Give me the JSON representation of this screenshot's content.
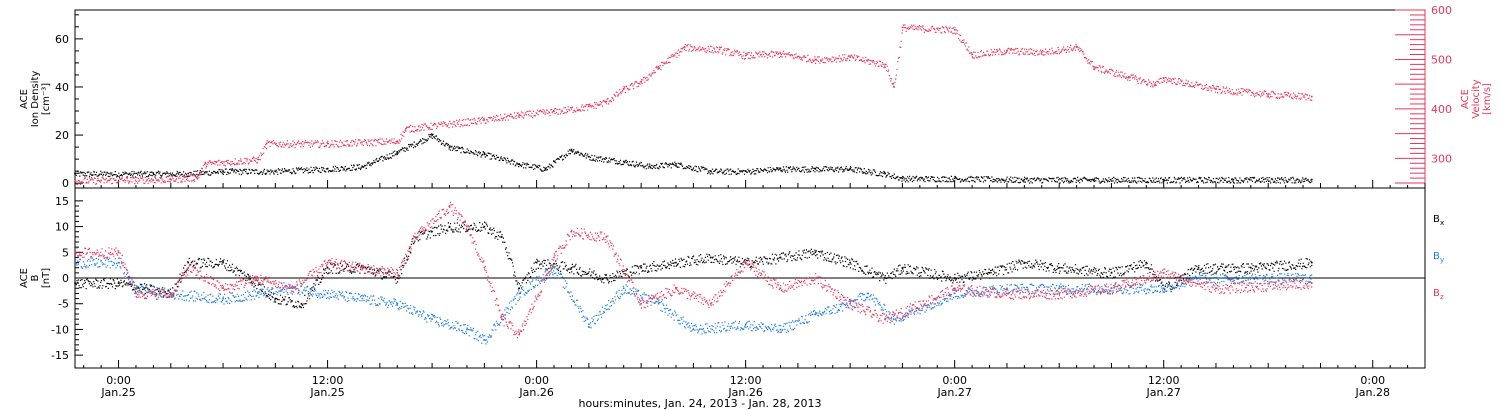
{
  "colors": {
    "black": "#000000",
    "blue": "#1f7fe0",
    "red": "#e8365c"
  },
  "xaxis": {
    "ticks": [
      {
        "t": "01-25 00:00",
        "time": "0:00",
        "day": "Jan.25"
      },
      {
        "t": "01-25 12:00",
        "time": "12:00",
        "day": "Jan.25"
      },
      {
        "t": "01-26 00:00",
        "time": "0:00",
        "day": "Jan.26"
      },
      {
        "t": "01-26 12:00",
        "time": "12:00",
        "day": "Jan.26"
      },
      {
        "t": "01-27 00:00",
        "time": "0:00",
        "day": "Jan.27"
      },
      {
        "t": "01-27 12:00",
        "time": "12:00",
        "day": "Jan.27"
      },
      {
        "t": "01-28 00:00",
        "time": "0:00",
        "day": "Jan.28"
      }
    ],
    "label": "hours:minutes, Jan. 24, 2013 - Jan. 28, 2013",
    "range": [
      "01-24 21:30",
      "01-28 03:00"
    ]
  },
  "chart_data": [
    {
      "type": "scatter",
      "panel": "top",
      "left_axis": {
        "label_lines": [
          "ACE",
          "Ion Density",
          "[cm⁻³]"
        ],
        "ylim": [
          -2,
          72
        ],
        "ticks": [
          0,
          20,
          40,
          60
        ]
      },
      "right_axis": {
        "label_lines": [
          "ACE",
          "Velocity",
          "[km/s]"
        ],
        "ylim": [
          240,
          600
        ],
        "ticks": [
          300,
          400,
          500,
          600
        ]
      },
      "series": [
        {
          "axis": "left",
          "color": "black",
          "points": [
            [
              "01-24 21:30",
              4
            ],
            [
              "01-25 02:00",
              4
            ],
            [
              "01-25 04:00",
              4
            ],
            [
              "01-25 06:00",
              5
            ],
            [
              "01-25 09:00",
              5
            ],
            [
              "01-25 12:00",
              6
            ],
            [
              "01-25 14:00",
              7
            ],
            [
              "01-25 16:00",
              13
            ],
            [
              "01-25 18:00",
              20
            ],
            [
              "01-25 19:00",
              15
            ],
            [
              "01-25 21:00",
              12
            ],
            [
              "01-25 23:00",
              8
            ],
            [
              "01-26 00:30",
              6
            ],
            [
              "01-26 02:00",
              14
            ],
            [
              "01-26 03:00",
              11
            ],
            [
              "01-26 05:00",
              9
            ],
            [
              "01-26 06:30",
              7
            ],
            [
              "01-26 08:00",
              8
            ],
            [
              "01-26 10:00",
              5
            ],
            [
              "01-26 12:00",
              5
            ],
            [
              "01-26 14:00",
              6
            ],
            [
              "01-26 16:00",
              6
            ],
            [
              "01-26 18:00",
              6
            ],
            [
              "01-26 20:00",
              4
            ],
            [
              "01-26 21:00",
              2
            ],
            [
              "01-27 00:00",
              2
            ],
            [
              "01-27 04:00",
              1.5
            ],
            [
              "01-27 08:00",
              1.5
            ],
            [
              "01-27 12:00",
              1.5
            ],
            [
              "01-27 16:00",
              1.5
            ],
            [
              "01-27 20:30",
              1.5
            ]
          ]
        },
        {
          "axis": "right",
          "color": "red",
          "points": [
            [
              "01-24 21:30",
              255
            ],
            [
              "01-25 03:00",
              258
            ],
            [
              "01-25 04:30",
              262
            ],
            [
              "01-25 05:00",
              290
            ],
            [
              "01-25 08:00",
              298
            ],
            [
              "01-25 08:30",
              330
            ],
            [
              "01-25 12:00",
              330
            ],
            [
              "01-25 16:00",
              335
            ],
            [
              "01-25 16:30",
              360
            ],
            [
              "01-25 21:00",
              378
            ],
            [
              "01-25 23:00",
              388
            ],
            [
              "01-26 01:00",
              395
            ],
            [
              "01-26 03:00",
              405
            ],
            [
              "01-26 04:00",
              415
            ],
            [
              "01-26 05:00",
              440
            ],
            [
              "01-26 06:00",
              455
            ],
            [
              "01-26 07:00",
              485
            ],
            [
              "01-26 08:30",
              525
            ],
            [
              "01-26 10:30",
              520
            ],
            [
              "01-26 12:00",
              508
            ],
            [
              "01-26 14:00",
              512
            ],
            [
              "01-26 16:00",
              500
            ],
            [
              "01-26 18:00",
              505
            ],
            [
              "01-26 20:00",
              490
            ],
            [
              "01-26 20:30",
              445
            ],
            [
              "01-26 21:00",
              565
            ],
            [
              "01-27 00:00",
              560
            ],
            [
              "01-27 01:00",
              510
            ],
            [
              "01-27 03:00",
              518
            ],
            [
              "01-27 05:00",
              515
            ],
            [
              "01-27 07:00",
              525
            ],
            [
              "01-27 08:00",
              485
            ],
            [
              "01-27 10:00",
              465
            ],
            [
              "01-27 11:30",
              450
            ],
            [
              "01-27 12:00",
              462
            ],
            [
              "01-27 15:00",
              440
            ],
            [
              "01-27 18:00",
              430
            ],
            [
              "01-27 20:30",
              425
            ]
          ]
        }
      ]
    },
    {
      "type": "scatter",
      "panel": "bottom",
      "left_axis": {
        "label_lines": [
          "ACE",
          "B",
          "[nT]"
        ],
        "ylim": [
          -17.5,
          17.5
        ],
        "ticks": [
          -15,
          -10,
          -5,
          0,
          5,
          10,
          15
        ]
      },
      "zero_line": true,
      "series": [
        {
          "name": "Bx",
          "color": "black",
          "points": [
            [
              "01-24 21:30",
              -1
            ],
            [
              "01-25 00:00",
              -1
            ],
            [
              "01-25 01:30",
              -2
            ],
            [
              "01-25 03:00",
              -3
            ],
            [
              "01-25 04:00",
              3
            ],
            [
              "01-25 06:00",
              3
            ],
            [
              "01-25 07:30",
              0
            ],
            [
              "01-25 09:00",
              -4
            ],
            [
              "01-25 10:30",
              -5
            ],
            [
              "01-25 12:00",
              2
            ],
            [
              "01-25 14:00",
              2
            ],
            [
              "01-25 16:00",
              0
            ],
            [
              "01-25 17:00",
              8
            ],
            [
              "01-25 19:00",
              10
            ],
            [
              "01-25 21:00",
              10
            ],
            [
              "01-25 22:00",
              8
            ],
            [
              "01-25 23:00",
              -2
            ],
            [
              "01-26 00:00",
              3
            ],
            [
              "01-26 02:00",
              2
            ],
            [
              "01-26 04:00",
              0
            ],
            [
              "01-26 06:00",
              2
            ],
            [
              "01-26 08:00",
              3
            ],
            [
              "01-26 10:00",
              4
            ],
            [
              "01-26 12:00",
              3
            ],
            [
              "01-26 14:00",
              4
            ],
            [
              "01-26 16:00",
              5
            ],
            [
              "01-26 18:00",
              3
            ],
            [
              "01-26 20:00",
              0
            ],
            [
              "01-26 21:00",
              2
            ],
            [
              "01-27 00:00",
              0
            ],
            [
              "01-27 02:00",
              1
            ],
            [
              "01-27 04:00",
              3
            ],
            [
              "01-27 06:00",
              2
            ],
            [
              "01-27 09:00",
              1
            ],
            [
              "01-27 11:00",
              3
            ],
            [
              "01-27 12:00",
              -2
            ],
            [
              "01-27 14:00",
              2
            ],
            [
              "01-27 17:00",
              2
            ],
            [
              "01-27 20:30",
              3
            ]
          ]
        },
        {
          "name": "By",
          "color": "blue",
          "points": [
            [
              "01-24 21:30",
              3
            ],
            [
              "01-25 00:00",
              3
            ],
            [
              "01-25 01:00",
              -2
            ],
            [
              "01-25 03:00",
              -3
            ],
            [
              "01-25 06:00",
              -4
            ],
            [
              "01-25 08:00",
              -3
            ],
            [
              "01-25 10:00",
              -2
            ],
            [
              "01-25 12:00",
              -3
            ],
            [
              "01-25 14:00",
              -4
            ],
            [
              "01-25 16:00",
              -5
            ],
            [
              "01-25 18:00",
              -8
            ],
            [
              "01-25 20:00",
              -10
            ],
            [
              "01-25 21:00",
              -12
            ],
            [
              "01-25 23:00",
              -3
            ],
            [
              "01-26 01:00",
              2
            ],
            [
              "01-26 03:00",
              -9
            ],
            [
              "01-26 05:00",
              -2
            ],
            [
              "01-26 07:00",
              -5
            ],
            [
              "01-26 09:00",
              -10
            ],
            [
              "01-26 12:00",
              -9
            ],
            [
              "01-26 14:00",
              -10
            ],
            [
              "01-26 16:00",
              -7
            ],
            [
              "01-26 18:00",
              -5
            ],
            [
              "01-26 19:00",
              -3
            ],
            [
              "01-26 20:30",
              -8
            ],
            [
              "01-27 00:00",
              -3
            ],
            [
              "01-27 03:00",
              -2
            ],
            [
              "01-27 06:00",
              -2
            ],
            [
              "01-27 09:00",
              -2
            ],
            [
              "01-27 12:00",
              -2
            ],
            [
              "01-27 14:00",
              0
            ],
            [
              "01-27 17:00",
              0
            ],
            [
              "01-27 20:30",
              0
            ]
          ]
        },
        {
          "name": "Bz",
          "color": "red",
          "points": [
            [
              "01-24 21:30",
              5
            ],
            [
              "01-25 00:00",
              5
            ],
            [
              "01-25 01:00",
              -3
            ],
            [
              "01-25 03:00",
              -3
            ],
            [
              "01-25 04:00",
              2
            ],
            [
              "01-25 06:00",
              -2
            ],
            [
              "01-25 08:00",
              0
            ],
            [
              "01-25 10:00",
              -2
            ],
            [
              "01-25 12:00",
              3
            ],
            [
              "01-25 14:00",
              2
            ],
            [
              "01-25 16:00",
              1
            ],
            [
              "01-25 17:00",
              8
            ],
            [
              "01-25 19:00",
              14
            ],
            [
              "01-25 20:00",
              10
            ],
            [
              "01-25 21:00",
              2
            ],
            [
              "01-25 22:00",
              -8
            ],
            [
              "01-25 23:00",
              -11
            ],
            [
              "01-26 01:00",
              4
            ],
            [
              "01-26 02:00",
              9
            ],
            [
              "01-26 04:00",
              8
            ],
            [
              "01-26 06:00",
              -5
            ],
            [
              "01-26 08:00",
              -2
            ],
            [
              "01-26 10:00",
              -5
            ],
            [
              "01-26 12:00",
              3
            ],
            [
              "01-26 14:00",
              -2
            ],
            [
              "01-26 16:00",
              0
            ],
            [
              "01-26 18:00",
              -5
            ],
            [
              "01-26 20:00",
              -8
            ],
            [
              "01-27 00:00",
              -2
            ],
            [
              "01-27 03:00",
              -3
            ],
            [
              "01-27 06:00",
              -3
            ],
            [
              "01-27 09:00",
              -2
            ],
            [
              "01-27 12:00",
              1
            ],
            [
              "01-27 15:00",
              -2
            ],
            [
              "01-27 20:30",
              -1
            ]
          ]
        }
      ]
    }
  ],
  "legend": [
    {
      "key": "Bx",
      "text": "B",
      "sub": "x",
      "color": "black"
    },
    {
      "key": "By",
      "text": "B",
      "sub": "y",
      "color": "blue"
    },
    {
      "key": "Bz",
      "text": "B",
      "sub": "z",
      "color": "red"
    }
  ]
}
